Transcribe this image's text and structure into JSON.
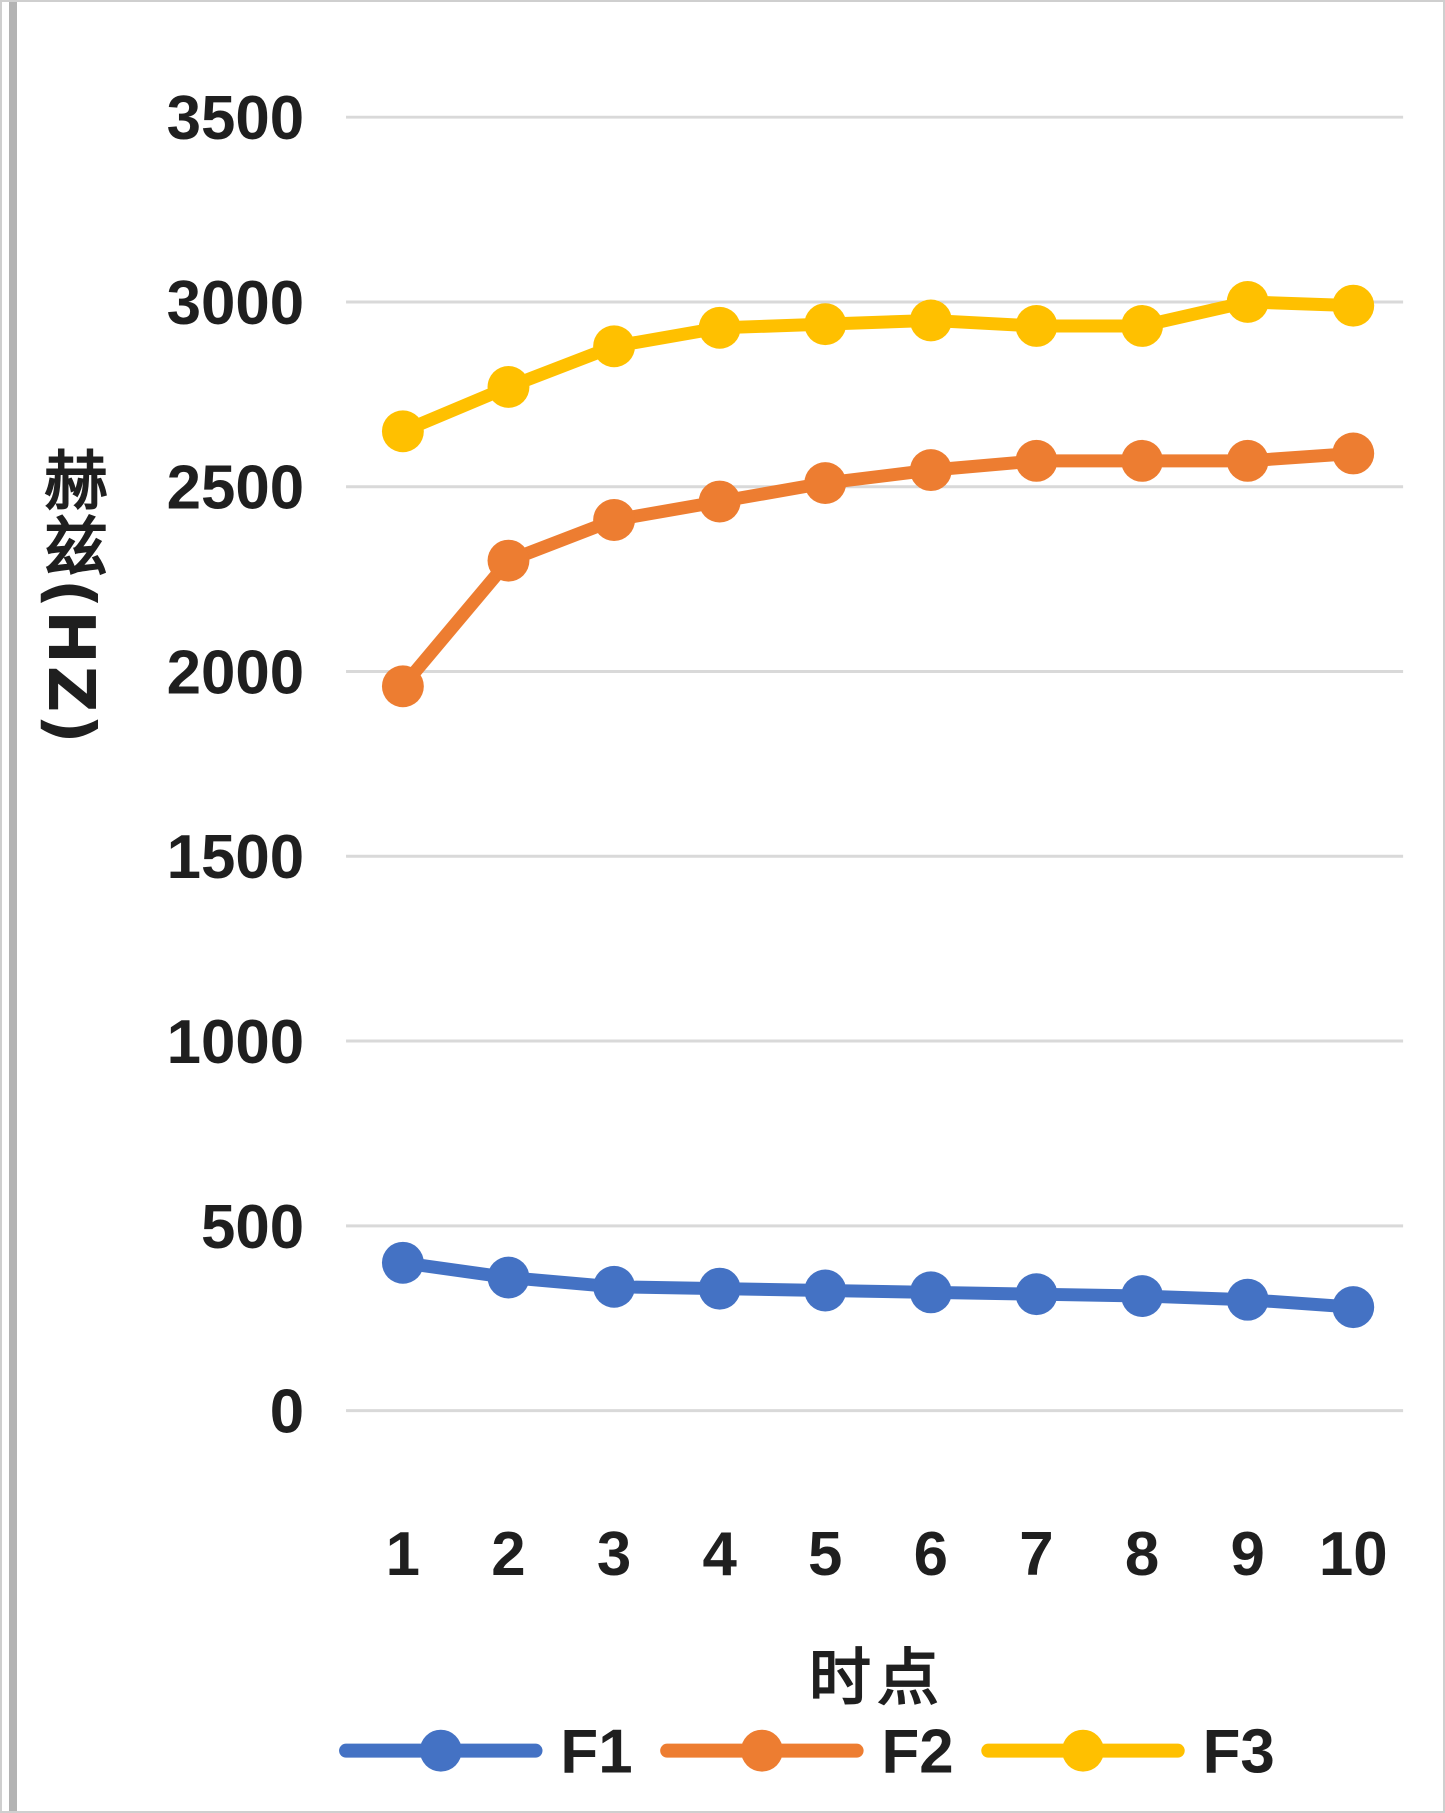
{
  "figure": {
    "border_color": "#cfcfcf",
    "edge_strip_color": "#b3b3b3",
    "grid_color": "#d9d9d9",
    "text_color": "#1f1f1f"
  },
  "chart_data": {
    "type": "line",
    "title": "",
    "xlabel": "时点",
    "ylabel": "赫兹(HZ)",
    "x": [
      "1",
      "2",
      "3",
      "4",
      "5",
      "6",
      "7",
      "8",
      "9",
      "10"
    ],
    "ylim": [
      0,
      3500
    ],
    "ytick_interval": 500,
    "ytick_labels": [
      "0",
      "500",
      "1000",
      "1500",
      "2000",
      "2500",
      "3000",
      "3500"
    ],
    "grid": true,
    "legend_position": "bottom",
    "series": [
      {
        "name": "F1",
        "color": "#4472C4",
        "values": [
          400,
          360,
          335,
          330,
          325,
          320,
          315,
          310,
          300,
          280
        ]
      },
      {
        "name": "F2",
        "color": "#ED7D31",
        "values": [
          1960,
          2300,
          2410,
          2460,
          2510,
          2545,
          2570,
          2570,
          2570,
          2590
        ]
      },
      {
        "name": "F3",
        "color": "#FFC000",
        "values": [
          2650,
          2770,
          2880,
          2930,
          2940,
          2950,
          2935,
          2935,
          3000,
          2990
        ]
      }
    ]
  }
}
